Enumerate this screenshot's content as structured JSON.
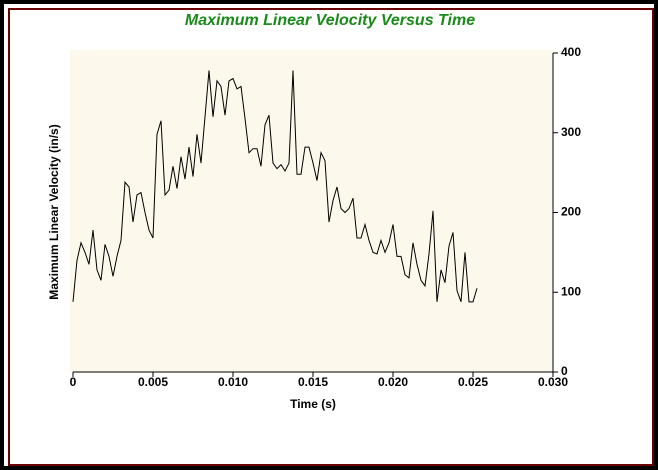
{
  "chart_data": {
    "type": "line",
    "title": "Maximum Linear Velocity Versus Time",
    "x_label": "Time (s)",
    "y_label": "Maximum Linear Velocity (in/s)",
    "xlim": [
      0,
      0.03
    ],
    "ylim": [
      0,
      400
    ],
    "xticks": [
      0,
      0.005,
      {
        "value": 0.01,
        "label": "0.010"
      },
      0.015,
      {
        "value": 0.02,
        "label": "0.020"
      },
      0.025,
      {
        "value": 0.03,
        "label": "0.030"
      }
    ],
    "yticks": [
      0,
      100,
      200,
      300,
      400
    ],
    "y_axis_side": "right",
    "series": [
      {
        "color": "#000000",
        "x": [
          0,
          0.00025,
          0.0005,
          0.00075,
          0.001,
          0.00125,
          0.0015,
          0.00175,
          0.002,
          0.00225,
          0.0025,
          0.00275,
          0.003,
          0.00325,
          0.0035,
          0.00375,
          0.004,
          0.00425,
          0.0045,
          0.00475,
          0.005,
          0.00525,
          0.0055,
          0.00575,
          0.006,
          0.00625,
          0.0065,
          0.00675,
          0.007,
          0.00725,
          0.0075,
          0.00775,
          0.008,
          0.00825,
          0.0085,
          0.00875,
          0.009,
          0.00925,
          0.0095,
          0.00975,
          0.01,
          0.01025,
          0.0105,
          0.01075,
          0.011,
          0.01125,
          0.0115,
          0.01175,
          0.012,
          0.01225,
          0.0125,
          0.01275,
          0.013,
          0.01325,
          0.0135,
          0.01375,
          0.014,
          0.01425,
          0.0145,
          0.01475,
          0.015,
          0.01525,
          0.0155,
          0.01575,
          0.016,
          0.01625,
          0.0165,
          0.01675,
          0.017,
          0.01725,
          0.0175,
          0.01775,
          0.018,
          0.01825,
          0.0185,
          0.01875,
          0.019,
          0.01925,
          0.0195,
          0.01975,
          0.02,
          0.02025,
          0.0205,
          0.02075,
          0.021,
          0.02125,
          0.0215,
          0.02175,
          0.022,
          0.02225,
          0.0225,
          0.02275,
          0.023,
          0.02325,
          0.0235,
          0.02375,
          0.024,
          0.02425,
          0.0245,
          0.02475,
          0.025,
          0.02525
        ],
        "values": [
          88,
          140,
          162,
          150,
          135,
          178,
          128,
          115,
          160,
          145,
          120,
          145,
          165,
          238,
          232,
          188,
          222,
          225,
          200,
          178,
          168,
          298,
          315,
          222,
          228,
          258,
          230,
          270,
          242,
          282,
          245,
          298,
          262,
          320,
          378,
          320,
          365,
          358,
          322,
          365,
          368,
          355,
          358,
          318,
          275,
          280,
          280,
          258,
          310,
          322,
          262,
          255,
          260,
          252,
          262,
          378,
          248,
          248,
          282,
          282,
          262,
          240,
          275,
          265,
          188,
          215,
          232,
          205,
          200,
          205,
          218,
          168,
          168,
          185,
          165,
          150,
          148,
          165,
          150,
          162,
          185,
          145,
          145,
          122,
          118,
          162,
          135,
          115,
          108,
          148,
          202,
          88,
          128,
          112,
          158,
          175,
          102,
          88,
          150,
          88,
          88,
          105
        ]
      }
    ]
  }
}
